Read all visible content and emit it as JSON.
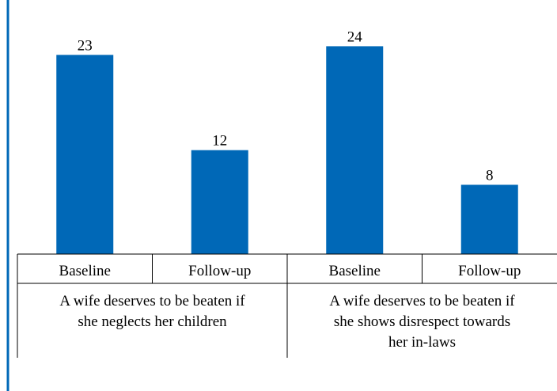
{
  "chart_data": {
    "type": "bar",
    "title": "",
    "xlabel": "",
    "ylabel": "",
    "ylim": [
      0,
      25.5
    ],
    "bar_color": "#0068b7",
    "frame_color": "#0068b7",
    "text_color": "#000000",
    "categories": [
      "Baseline",
      "Follow-up",
      "Baseline",
      "Follow-up"
    ],
    "values": [
      23,
      12,
      24,
      8
    ],
    "groups": [
      {
        "label_lines": [
          "A wife deserves to be beaten if",
          "she neglects her children"
        ],
        "categories": [
          "Baseline",
          "Follow-up"
        ],
        "values": [
          23,
          12
        ]
      },
      {
        "label_lines": [
          "A wife deserves to be beaten if",
          "she shows disrespect towards",
          "her in-laws"
        ],
        "categories": [
          "Baseline",
          "Follow-up"
        ],
        "values": [
          24,
          8
        ]
      }
    ]
  }
}
